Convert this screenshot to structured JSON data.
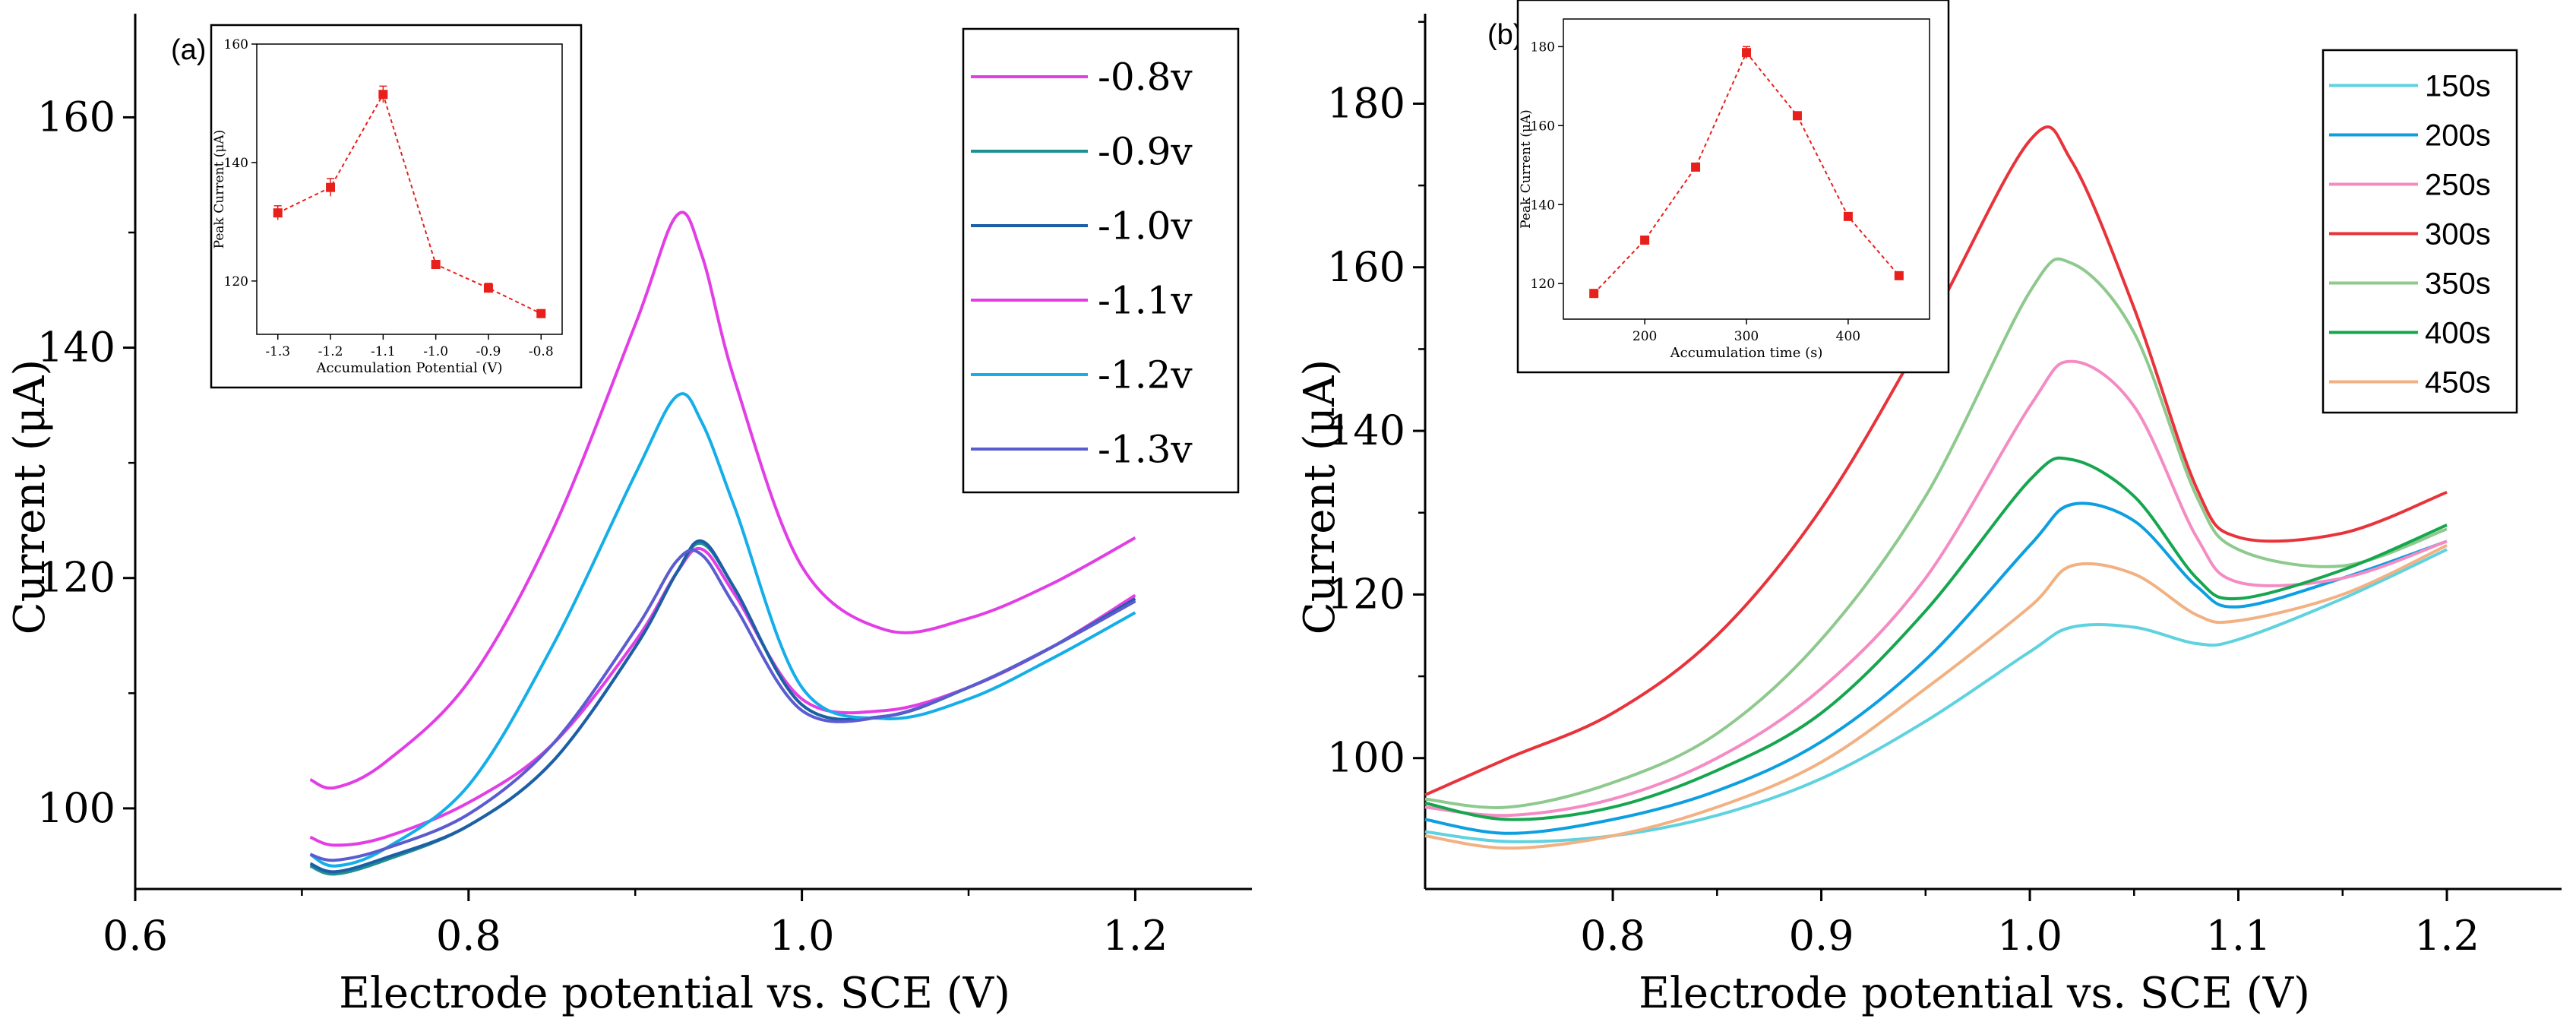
{
  "chart_data": [
    {
      "id": "a",
      "type": "line",
      "panel_label": "(a)",
      "xlabel": "Electrode potential vs. SCE (V)",
      "ylabel": "Current (μA)",
      "xlim": [
        0.6,
        1.27
      ],
      "ylim": [
        93,
        169
      ],
      "xticks": [
        0.6,
        0.8,
        1.0,
        1.2
      ],
      "xtick_labels": [
        "0.6",
        "0.8",
        "1.0",
        "1.2"
      ],
      "yticks": [
        100,
        120,
        140,
        160
      ],
      "ytick_labels": [
        "100",
        "120",
        "140",
        "160"
      ],
      "legend_position": "top-right",
      "x": [
        0.705,
        0.72,
        0.75,
        0.8,
        0.85,
        0.9,
        0.925,
        0.94,
        0.96,
        1.0,
        1.05,
        1.1,
        1.15,
        1.2
      ],
      "series": [
        {
          "name": "-0.8v",
          "color": "#e23ee6",
          "values": [
            97.5,
            96.8,
            97.5,
            100.5,
            105.5,
            114.5,
            120.5,
            122.5,
            118.5,
            109.5,
            108.5,
            110.5,
            114.0,
            118.5
          ]
        },
        {
          "name": "-0.9v",
          "color": "#1f8f8f",
          "values": [
            95.0,
            94.3,
            95.5,
            98.5,
            104.0,
            114.0,
            120.5,
            123.0,
            119.0,
            109.0,
            108.0,
            110.5,
            114.0,
            118.0
          ]
        },
        {
          "name": "-1.0v",
          "color": "#1c5fa6",
          "values": [
            95.2,
            94.5,
            95.7,
            98.5,
            104.0,
            114.0,
            120.5,
            123.2,
            119.0,
            109.0,
            108.0,
            110.5,
            114.0,
            118.2
          ]
        },
        {
          "name": "-1.1v",
          "color": "#e23ee6",
          "values": [
            102.5,
            101.8,
            104.0,
            111.0,
            124.0,
            142.0,
            151.5,
            148.0,
            137.0,
            121.0,
            115.5,
            116.5,
            119.5,
            123.5
          ]
        },
        {
          "name": "-1.2v",
          "color": "#14aee8",
          "values": [
            96.0,
            95.0,
            96.5,
            102.0,
            114.0,
            129.0,
            135.8,
            133.5,
            126.0,
            110.5,
            107.8,
            109.5,
            113.0,
            117.0
          ]
        },
        {
          "name": "-1.3v",
          "color": "#5a5ccf",
          "values": [
            96.0,
            95.5,
            96.5,
            99.5,
            105.5,
            115.5,
            121.5,
            122.0,
            117.5,
            108.5,
            108.0,
            110.5,
            114.0,
            118.0
          ]
        }
      ],
      "inset": {
        "type": "scatter-line",
        "xlabel": "Accumulation Potential (V)",
        "ylabel": "Peak Current (μA)",
        "xlim": [
          -1.34,
          -0.76
        ],
        "ylim": [
          111,
          160
        ],
        "xticks": [
          -1.3,
          -1.2,
          -1.1,
          -1.0,
          -0.9,
          -0.8
        ],
        "xtick_labels": [
          "-1.3",
          "-1.2",
          "-1.1",
          "-1.0",
          "-0.9",
          "-0.8"
        ],
        "yticks": [
          120,
          140,
          160
        ],
        "ytick_labels": [
          "120",
          "140",
          "160"
        ],
        "x": [
          -1.3,
          -1.2,
          -1.1,
          -1.0,
          -0.9,
          -0.8
        ],
        "y": [
          131.5,
          135.8,
          151.5,
          122.8,
          118.8,
          114.5
        ],
        "yerr": [
          1.2,
          1.5,
          1.4,
          0.6,
          0.8,
          0.5
        ],
        "color": "#e8201c"
      }
    },
    {
      "id": "b",
      "type": "line",
      "panel_label": "(b)",
      "xlabel": "Electrode potential vs. SCE (V)",
      "ylabel": "Current (μA)",
      "xlim": [
        0.71,
        1.255
      ],
      "ylim": [
        84,
        191
      ],
      "xticks": [
        0.8,
        0.9,
        1.0,
        1.1,
        1.2
      ],
      "xtick_labels": [
        "0.8",
        "0.9",
        "1.0",
        "1.1",
        "1.2"
      ],
      "yticks": [
        100,
        120,
        140,
        160,
        180
      ],
      "ytick_labels": [
        "100",
        "120",
        "140",
        "160",
        "180"
      ],
      "legend_position": "top-right",
      "x": [
        0.71,
        0.75,
        0.8,
        0.85,
        0.9,
        0.95,
        1.0,
        1.02,
        1.05,
        1.08,
        1.1,
        1.15,
        1.2
      ],
      "series": [
        {
          "name": "150s",
          "color": "#5fd2e0",
          "values": [
            91.0,
            89.8,
            90.5,
            93.0,
            97.5,
            104.5,
            113.0,
            116.0,
            116.0,
            114.0,
            114.5,
            119.5,
            125.5
          ]
        },
        {
          "name": "200s",
          "color": "#0d9fe0",
          "values": [
            92.5,
            90.8,
            92.5,
            96.0,
            102.0,
            112.0,
            126.0,
            131.0,
            129.0,
            121.0,
            118.5,
            122.0,
            126.5
          ]
        },
        {
          "name": "250s",
          "color": "#f48cc3",
          "values": [
            94.0,
            93.0,
            95.0,
            100.0,
            108.5,
            122.0,
            143.0,
            148.5,
            143.0,
            127.0,
            121.5,
            122.0,
            126.5
          ]
        },
        {
          "name": "300s",
          "color": "#e8333b",
          "values": [
            95.5,
            100.0,
            105.5,
            115.0,
            130.5,
            152.0,
            175.5,
            173.0,
            155.0,
            133.0,
            127.0,
            127.5,
            132.5
          ]
        },
        {
          "name": "350s",
          "color": "#8ec98e",
          "values": [
            95.0,
            94.0,
            97.0,
            103.0,
            114.5,
            132.0,
            157.0,
            160.5,
            152.0,
            132.0,
            125.5,
            123.5,
            128.0
          ]
        },
        {
          "name": "400s",
          "color": "#16a64f",
          "values": [
            94.5,
            92.5,
            94.0,
            98.5,
            105.5,
            118.0,
            134.0,
            136.5,
            132.0,
            122.0,
            119.5,
            123.0,
            128.5
          ]
        },
        {
          "name": "450s",
          "color": "#f2b183",
          "values": [
            90.5,
            89.0,
            90.5,
            94.0,
            99.5,
            108.5,
            118.5,
            123.5,
            122.5,
            117.5,
            116.8,
            120.0,
            126.0
          ]
        }
      ],
      "inset": {
        "type": "scatter-line",
        "xlabel": "Accumulation time (s)",
        "ylabel": "Peak Current (μA)",
        "xlim": [
          120,
          480
        ],
        "ylim": [
          111,
          187
        ],
        "xticks": [
          200,
          300,
          400
        ],
        "xtick_labels": [
          "200",
          "300",
          "400"
        ],
        "yticks": [
          120,
          140,
          160,
          180
        ],
        "ytick_labels": [
          "120",
          "140",
          "160",
          "180"
        ],
        "x": [
          150,
          200,
          250,
          300,
          350,
          400,
          450
        ],
        "y": [
          117.5,
          131.0,
          149.5,
          178.5,
          162.5,
          137.0,
          122.0
        ],
        "yerr": [
          0.8,
          1.0,
          0.6,
          1.5,
          1.0,
          0.6,
          0.6
        ],
        "color": "#e8201c"
      }
    }
  ]
}
